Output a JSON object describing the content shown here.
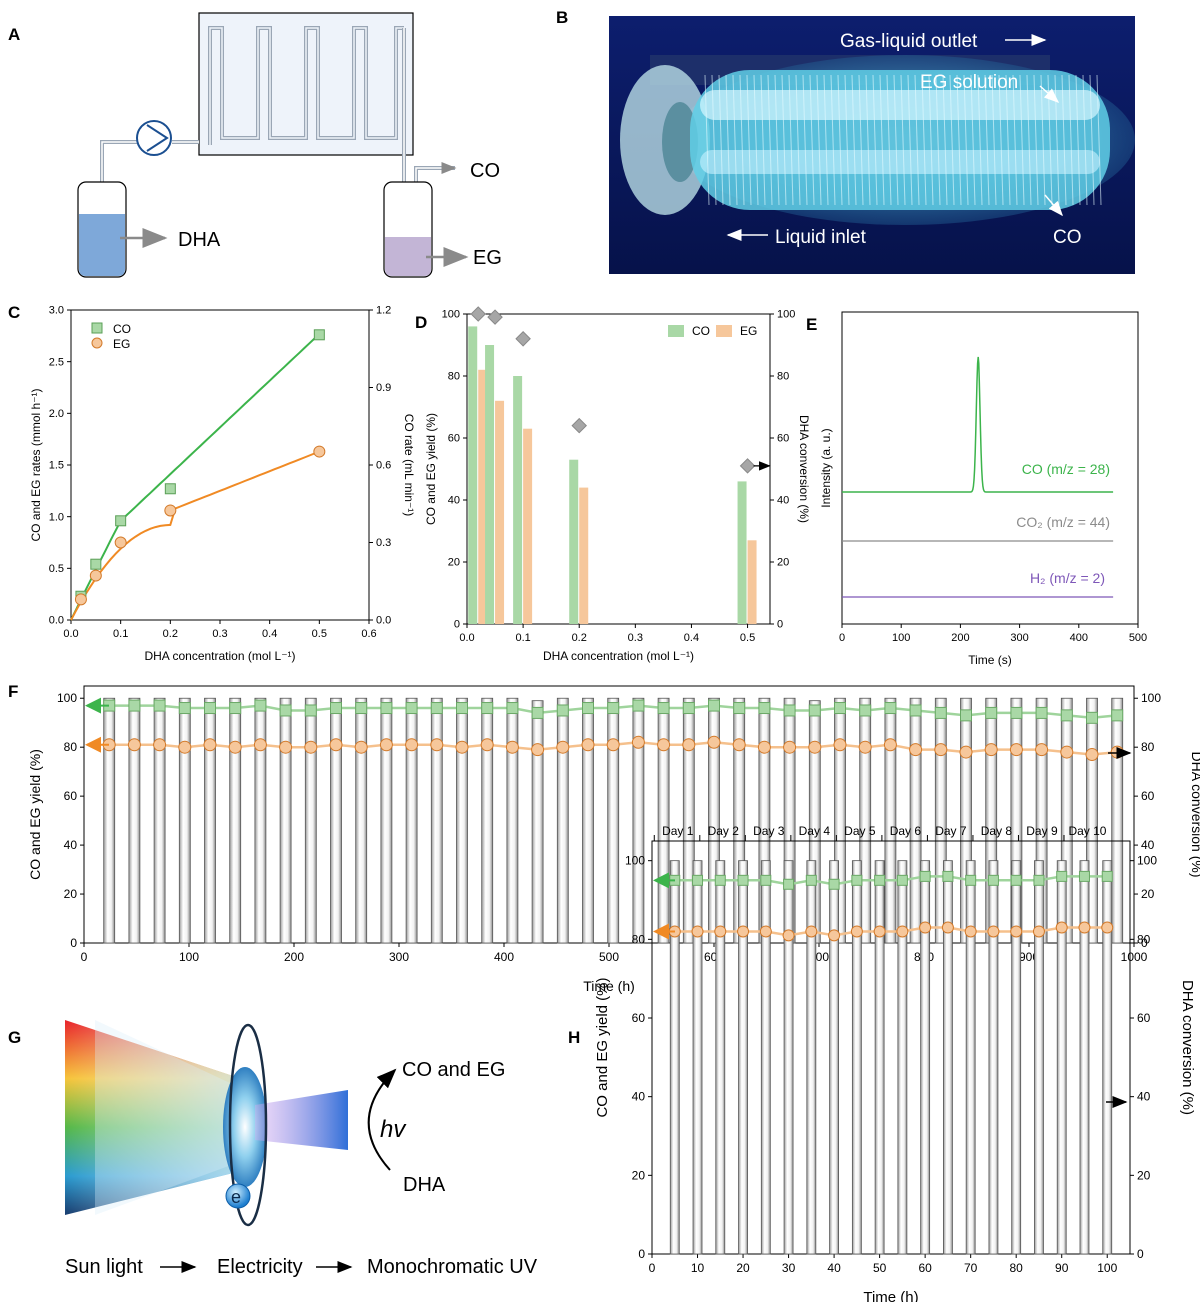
{
  "panels": {
    "A": "A",
    "B": "B",
    "C": "C",
    "D": "D",
    "E": "E",
    "F": "F",
    "G": "G",
    "H": "H"
  },
  "schematic_a": {
    "co": "CO",
    "dha": "DHA",
    "eg": "EG"
  },
  "photo_b": {
    "gas_liquid_outlet": "Gas-liquid outlet",
    "eg_solution": "EG solution",
    "liquid_inlet": "Liquid inlet",
    "co": "CO"
  },
  "illustration_g": {
    "electron": "e",
    "co_and_eg": "CO and EG",
    "hv": "hv",
    "dha": "DHA",
    "flow": [
      "Sun light",
      "Electricity",
      "Monochromatic UV"
    ]
  },
  "colors": {
    "co_green": "#3cb44b",
    "co_fill": "#a9d8a6",
    "eg_orange": "#f08a24",
    "eg_fill": "#f6c79b",
    "dha_gray": "#a6a6a6",
    "h2_purple": "#7e57b8"
  },
  "chart_data": [
    {
      "panel": "C",
      "type": "scatter",
      "xlabel": "DHA concentration (mol L⁻¹)",
      "ylabel": "CO and EG  rates (mmol h⁻¹)",
      "y2label": "CO rate (mL min⁻¹)",
      "xlim": [
        0,
        0.6
      ],
      "ylim": [
        0,
        3.0
      ],
      "y2lim": [
        0,
        1.2
      ],
      "xticks": [
        "0.0",
        "0.1",
        "0.2",
        "0.3",
        "0.4",
        "0.5",
        "0.6"
      ],
      "yticks": [
        "0.0",
        "0.5",
        "1.0",
        "1.5",
        "2.0",
        "2.5",
        "3.0"
      ],
      "y2ticks": [
        "0.0",
        "0.3",
        "0.6",
        "0.9",
        "1.2"
      ],
      "legend_position": "top-left",
      "x": [
        0.02,
        0.05,
        0.1,
        0.2,
        0.5
      ],
      "series": [
        {
          "name": "CO",
          "values": [
            0.23,
            0.54,
            0.96,
            1.27,
            2.76
          ]
        },
        {
          "name": "EG",
          "values": [
            0.2,
            0.43,
            0.75,
            1.06,
            1.63
          ]
        }
      ]
    },
    {
      "panel": "D",
      "type": "bar",
      "xlabel": "DHA concentration (mol L⁻¹)",
      "ylabel": "CO and EG yield  (%)",
      "y2label": "DHA conversion (%)",
      "xlim": [
        0,
        0.5
      ],
      "ylim": [
        0,
        100
      ],
      "y2lim": [
        0,
        100
      ],
      "xticks": [
        "0.0",
        "0.1",
        "0.2",
        "0.3",
        "0.4",
        "0.5"
      ],
      "yticks": [
        "0",
        "20",
        "40",
        "60",
        "80",
        "100"
      ],
      "y2ticks": [
        "0",
        "20",
        "40",
        "60",
        "80",
        "100"
      ],
      "legend_position": "top-right",
      "x": [
        0.02,
        0.05,
        0.1,
        0.2,
        0.5
      ],
      "series": [
        {
          "name": "CO",
          "values": [
            96,
            90,
            80,
            53,
            46
          ]
        },
        {
          "name": "EG",
          "values": [
            82,
            72,
            63,
            44,
            27
          ]
        },
        {
          "values": [
            100,
            99,
            92,
            64,
            51
          ]
        }
      ]
    },
    {
      "panel": "E",
      "type": "line",
      "xlabel": "Time (s)",
      "ylabel": "Intensity (a. u.)",
      "xlim": [
        0,
        500
      ],
      "xticks": [
        "0",
        "100",
        "200",
        "300",
        "400",
        "500"
      ],
      "series": [
        {
          "name": "CO (m/z = 28)",
          "peak_time": 230
        },
        {
          "name": "CO₂ (m/z = 44)"
        },
        {
          "name": "H₂ (m/z = 2)"
        }
      ]
    },
    {
      "panel": "F",
      "type": "bar",
      "xlabel": "Time (h)",
      "ylabel": "CO and EG yield (%)",
      "y2label": "DHA conversion (%)",
      "xlim": [
        0,
        1000
      ],
      "ylim": [
        0,
        105
      ],
      "y2lim": [
        0,
        105
      ],
      "xticks": [
        "0",
        "100",
        "200",
        "300",
        "400",
        "500",
        "600",
        "700",
        "800",
        "900",
        "1000"
      ],
      "yticks": [
        "0",
        "20",
        "40",
        "60",
        "80",
        "100"
      ],
      "y2ticks": [
        "0",
        "20",
        "40",
        "60",
        "80",
        "100"
      ],
      "x": [
        24,
        48,
        72,
        96,
        120,
        144,
        168,
        192,
        216,
        240,
        264,
        288,
        312,
        336,
        360,
        384,
        408,
        432,
        456,
        480,
        504,
        528,
        552,
        576,
        600,
        624,
        648,
        672,
        696,
        720,
        744,
        768,
        792,
        816,
        840,
        864,
        888,
        912,
        936,
        960,
        984
      ],
      "series": [
        {
          "name": "CO",
          "values": [
            97,
            97,
            97,
            96,
            96,
            96,
            97,
            95,
            95,
            96,
            96,
            96,
            96,
            96,
            96,
            96,
            96,
            94,
            95,
            96,
            96,
            97,
            96,
            96,
            97,
            96,
            96,
            95,
            95,
            96,
            95,
            96,
            95,
            94,
            93,
            94,
            94,
            94,
            93,
            92,
            93
          ]
        },
        {
          "name": "EG",
          "values": [
            81,
            81,
            81,
            80,
            81,
            80,
            81,
            80,
            80,
            81,
            80,
            81,
            81,
            81,
            80,
            81,
            80,
            79,
            80,
            81,
            81,
            82,
            81,
            81,
            82,
            81,
            80,
            80,
            80,
            81,
            80,
            81,
            79,
            79,
            78,
            79,
            79,
            79,
            78,
            77,
            78
          ]
        },
        {
          "values": [
            100,
            100,
            100,
            100,
            100,
            100,
            100,
            100,
            100,
            100,
            100,
            100,
            100,
            100,
            100,
            100,
            100,
            99,
            100,
            100,
            100,
            100,
            100,
            100,
            100,
            100,
            100,
            100,
            99,
            100,
            100,
            100,
            100,
            100,
            100,
            100,
            100,
            100,
            100,
            100,
            100
          ]
        }
      ]
    },
    {
      "panel": "H",
      "type": "bar",
      "xlabel": "Time (h)",
      "ylabel": "CO and EG yield (%)",
      "y2label": "DHA conversion (%)",
      "xlim": [
        0,
        105
      ],
      "ylim": [
        0,
        105
      ],
      "y2lim": [
        0,
        105
      ],
      "xticks": [
        "0",
        "10",
        "20",
        "30",
        "40",
        "50",
        "60",
        "70",
        "80",
        "90",
        "100"
      ],
      "yticks": [
        "0",
        "20",
        "40",
        "60",
        "80",
        "100"
      ],
      "y2ticks": [
        "0",
        "20",
        "40",
        "60",
        "80",
        "100"
      ],
      "days": [
        "Day 1",
        "Day 2",
        "Day 3",
        "Day 4",
        "Day 5",
        "Day 6",
        "Day 7",
        "Day 8",
        "Day 9",
        "Day 10"
      ],
      "x": [
        5,
        10,
        15,
        20,
        25,
        30,
        35,
        40,
        45,
        50,
        55,
        60,
        65,
        70,
        75,
        80,
        85,
        90,
        95,
        100
      ],
      "series": [
        {
          "name": "CO",
          "values": [
            95,
            95,
            95,
            95,
            95,
            94,
            95,
            94,
            95,
            95,
            95,
            96,
            96,
            95,
            95,
            95,
            95,
            96,
            96,
            96
          ]
        },
        {
          "name": "EG",
          "values": [
            82,
            82,
            82,
            82,
            82,
            81,
            82,
            81,
            82,
            82,
            82,
            83,
            83,
            82,
            82,
            82,
            82,
            83,
            83,
            83
          ]
        },
        {
          "values": [
            100,
            100,
            100,
            100,
            100,
            100,
            100,
            100,
            100,
            100,
            100,
            100,
            100,
            100,
            100,
            100,
            100,
            100,
            100,
            100
          ]
        }
      ]
    }
  ]
}
